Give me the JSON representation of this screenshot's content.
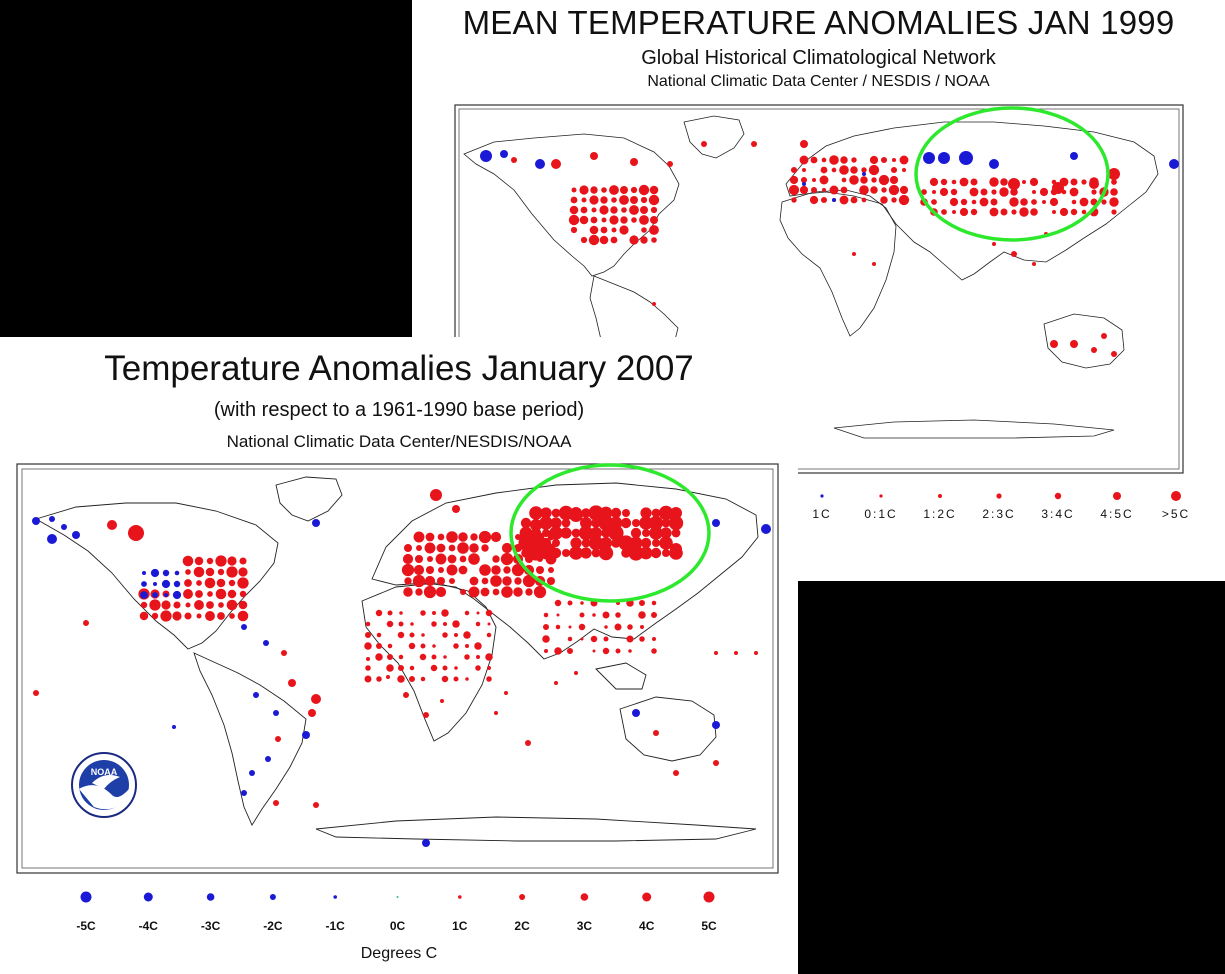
{
  "top_panel": {
    "title": "MEAN TEMPERATURE ANOMALIES JAN 1999",
    "subtitle": "Global Historical Climatological Network",
    "credit": "National Climatic Data Center / NESDIS / NOAA",
    "legend_visible": [
      "1C",
      "0:1C",
      "1:2C",
      "2:3C",
      "3:4C",
      "4:5C",
      ">5C"
    ]
  },
  "bottom_panel": {
    "title": "Temperature Anomalies January 2007",
    "subtitle": "(with respect to a 1961-1990 base period)",
    "credit": "National Climatic Data Center/NESDIS/NOAA",
    "legend": [
      "-5C",
      "-4C",
      "-3C",
      "-2C",
      "-1C",
      "0C",
      "1C",
      "2C",
      "3C",
      "4C",
      "5C"
    ],
    "units": "Degrees C",
    "logo_text": "NOAA"
  },
  "colors": {
    "warm": "#e8141b",
    "cold": "#1a1ad6",
    "neutral": "#35b3a0",
    "highlight": "#2ee82e",
    "land_outline": "#222222"
  }
}
